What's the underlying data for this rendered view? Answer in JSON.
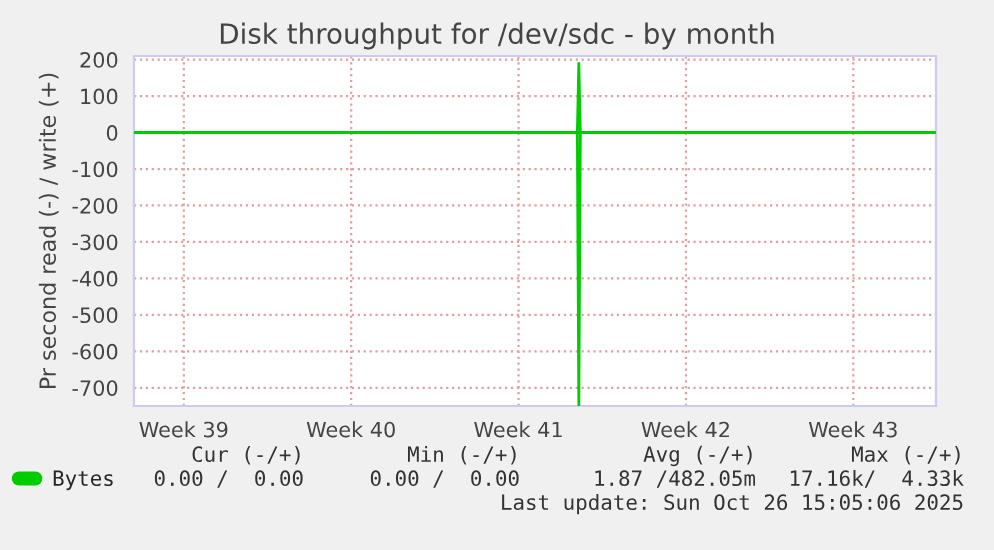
{
  "chart_data": {
    "type": "line",
    "title": "Disk throughput for /dev/sdc - by month",
    "ylabel": "Pr second read (-) / write (+)",
    "x": [
      "2025-09-23T10:00",
      "2025-10-11T23:00",
      "2025-10-12T00:30",
      "2025-10-12T02:00",
      "2025-10-26T23:00"
    ],
    "series": [
      {
        "name": "Bytes",
        "color": "#00cc00",
        "values": [
          0,
          0,
          190,
          0,
          0
        ]
      },
      {
        "color": "#00cc00",
        "values": [
          0,
          0,
          -750,
          0,
          0
        ]
      }
    ],
    "xlim": [
      "2025-09-23T10:00",
      "2025-10-26T23:00"
    ],
    "xticks": [
      {
        "value": "2025-09-25T12:00",
        "label": "Week 39"
      },
      {
        "value": "2025-10-02T12:00",
        "label": "Week 40"
      },
      {
        "value": "2025-10-09T12:00",
        "label": "Week 41"
      },
      {
        "value": "2025-10-16T12:00",
        "label": "Week 42"
      },
      {
        "value": "2025-10-23T12:00",
        "label": "Week 43"
      }
    ],
    "ylim": [
      -750,
      210
    ],
    "yticks": [
      -700,
      -600,
      -500,
      -400,
      -300,
      -200,
      -100,
      0,
      100,
      200
    ],
    "ref_lines": [
      {
        "axis": "y",
        "value": 0,
        "color": "#000000"
      }
    ],
    "grid": true,
    "legend": "bottom left",
    "annotations": [
      "Cur (-/+)",
      "Min (-/+)",
      "Avg (-/+)",
      "Max (-/+)",
      "0.00 /  0.00",
      "0.00 /  0.00",
      "1.87 /482.05m",
      "17.16k/  4.33k",
      "Last update: Sun Oct 26 15:05:06 2025"
    ]
  }
}
